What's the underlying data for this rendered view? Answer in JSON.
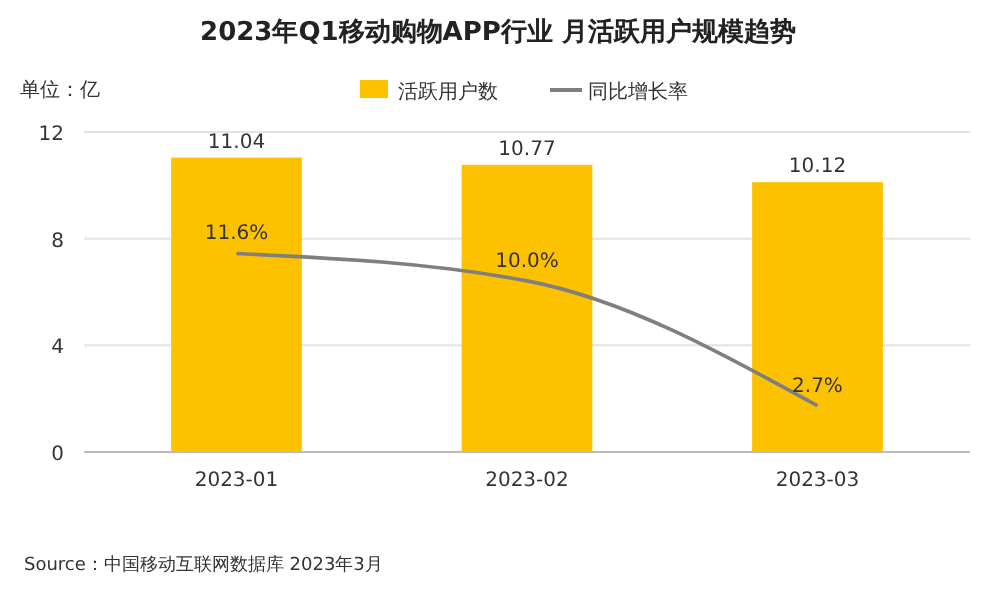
{
  "chart_data": {
    "type": "bar",
    "title": "2023年Q1移动购物APP行业 月活跃用户规模趋势",
    "ylabel": "单位：亿",
    "categories": [
      "2023-01",
      "2023-02",
      "2023-03"
    ],
    "series": [
      {
        "name": "活跃用户数",
        "color": "#fcc200",
        "values": [
          11.04,
          10.77,
          10.12
        ]
      },
      {
        "name": "同比增长率",
        "type": "line",
        "axis": "y2",
        "color": "#7f7f7f",
        "values": [
          11.6,
          10.0,
          2.7
        ],
        "value_labels": [
          "11.6%",
          "10.0%",
          "2.7%"
        ]
      }
    ],
    "ylim": [
      0,
      12
    ],
    "yticks": [
      0,
      4,
      8,
      12
    ],
    "y2lim": [
      0,
      18.7
    ],
    "tick_labels": "xy",
    "grid": "y",
    "legend": "top",
    "data_labels": true,
    "marker": "none",
    "annotations": [
      "Source：中国移动互联网数据库 2023年3月"
    ]
  }
}
